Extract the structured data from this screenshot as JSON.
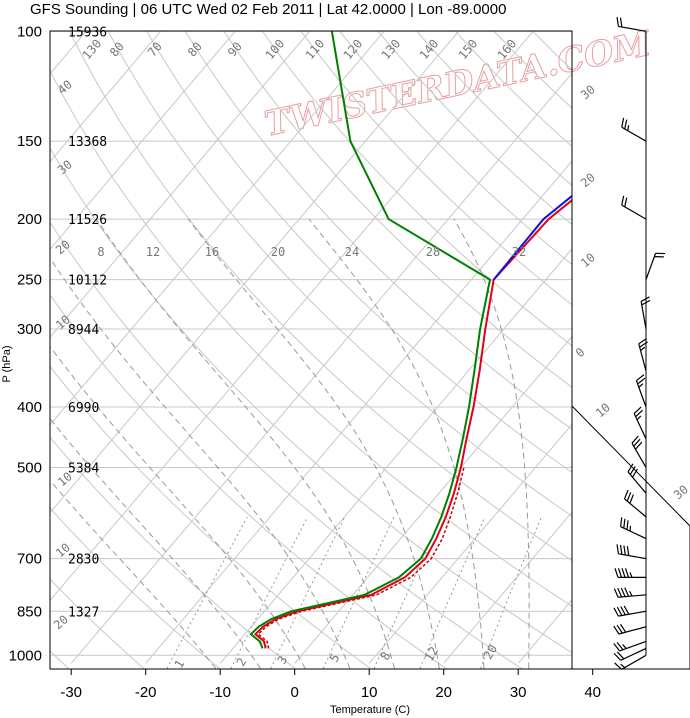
{
  "title": "GFS Sounding | 06 UTC Wed 02 Feb 2011 | Lat 42.0000 | Lon -89.0000",
  "watermark": "TWISTERDATA.COM",
  "colors": {
    "temperature": "#e0001b",
    "dewpoint": "#008000",
    "parcel": "#1010e0",
    "virtual_temp": "#cc0000",
    "grid": "#c8c8c8",
    "mixing": "#999999"
  },
  "chart_data": {
    "type": "skew-t",
    "xlabel": "Temperature (C)",
    "ylabel": "P (hPa)",
    "xlim": [
      -34,
      46
    ],
    "ylim": [
      1030,
      100
    ],
    "x_ticks": [
      "-30",
      "-20",
      "-10",
      "0",
      "10",
      "20",
      "30",
      "40"
    ],
    "pressure_levels": [
      {
        "p": 100,
        "label": "100",
        "height": "15936"
      },
      {
        "p": 150,
        "label": "150",
        "height": "13368"
      },
      {
        "p": 200,
        "label": "200",
        "height": "11526"
      },
      {
        "p": 250,
        "label": "250",
        "height": "10112"
      },
      {
        "p": 300,
        "label": "300",
        "height": "8944"
      },
      {
        "p": 400,
        "label": "400",
        "height": "6990"
      },
      {
        "p": 500,
        "label": "500",
        "height": "5384"
      },
      {
        "p": 700,
        "label": "700",
        "height": "2830"
      },
      {
        "p": 850,
        "label": "850",
        "height": "1327"
      },
      {
        "p": 1000,
        "label": "1000",
        "height": ""
      }
    ],
    "mixing_ratio_labels": [
      "8",
      "12",
      "16",
      "20",
      "24",
      "28",
      "32"
    ],
    "mixing_ratio_lower_labels": [
      "1",
      "2",
      "3",
      "5",
      "8",
      "12",
      "20"
    ],
    "dry_adiabat_labels_top": [
      "130",
      "80",
      "70",
      "80",
      "90",
      "100",
      "110",
      "120",
      "130",
      "140",
      "150",
      "160"
    ],
    "dry_adiabat_labels_right": [
      "30",
      "20",
      "10",
      "0",
      "10",
      "30"
    ],
    "dry_adiabat_labels_left": [
      "40",
      "30",
      "20",
      "10",
      "10",
      "10",
      "20",
      "30"
    ],
    "series": [
      {
        "name": "",
        "color_key": "temperature",
        "points": [
          [
            975,
            -5.6
          ],
          [
            950,
            -6.6
          ],
          [
            925,
            -8.6
          ],
          [
            900,
            -8.4
          ],
          [
            875,
            -7.6
          ],
          [
            850,
            -5.6
          ],
          [
            800,
            2.5
          ],
          [
            750,
            5.0
          ],
          [
            700,
            5.6
          ],
          [
            650,
            4.8
          ],
          [
            600,
            3.6
          ],
          [
            550,
            2.0
          ],
          [
            500,
            0.0
          ],
          [
            450,
            -2.5
          ],
          [
            400,
            -5.2
          ],
          [
            350,
            -8.5
          ],
          [
            300,
            -12.5
          ],
          [
            250,
            -17.0
          ],
          [
            200,
            -16.5
          ],
          [
            150,
            -12.5
          ],
          [
            100,
            -10.0
          ]
        ]
      },
      {
        "name": "",
        "color_key": "dewpoint",
        "points": [
          [
            975,
            -6.0
          ],
          [
            950,
            -7.2
          ],
          [
            925,
            -9.2
          ],
          [
            900,
            -9.0
          ],
          [
            875,
            -8.2
          ],
          [
            850,
            -6.4
          ],
          [
            800,
            1.6
          ],
          [
            750,
            4.2
          ],
          [
            700,
            5.0
          ],
          [
            650,
            4.2
          ],
          [
            600,
            3.0
          ],
          [
            550,
            1.4
          ],
          [
            500,
            -0.6
          ],
          [
            450,
            -3.0
          ],
          [
            400,
            -5.8
          ],
          [
            350,
            -9.2
          ],
          [
            300,
            -13.2
          ],
          [
            250,
            -17.5
          ],
          [
            200,
            -38.0
          ],
          [
            150,
            -52.0
          ],
          [
            100,
            -67.0
          ]
        ]
      },
      {
        "name": "",
        "color_key": "parcel",
        "points": [
          [
            250,
            -17.0
          ],
          [
            200,
            -17.2
          ],
          [
            150,
            -13.2
          ],
          [
            100,
            -10.6
          ]
        ]
      },
      {
        "name": "",
        "color_key": "virtual_temp",
        "dashed": true,
        "points": [
          [
            975,
            -5.2
          ],
          [
            950,
            -6.2
          ],
          [
            925,
            -8.2
          ],
          [
            900,
            -8.0
          ],
          [
            875,
            -7.2
          ],
          [
            850,
            -5.0
          ],
          [
            800,
            3.2
          ],
          [
            750,
            5.8
          ],
          [
            700,
            6.4
          ],
          [
            650,
            5.6
          ],
          [
            600,
            4.2
          ],
          [
            550,
            2.5
          ],
          [
            500,
            0.4
          ]
        ]
      }
    ],
    "wind_barbs": [
      {
        "p": 1000,
        "dir": 240,
        "speed": 15
      },
      {
        "p": 975,
        "dir": 245,
        "speed": 20
      },
      {
        "p": 950,
        "dir": 250,
        "speed": 25
      },
      {
        "p": 900,
        "dir": 255,
        "speed": 30
      },
      {
        "p": 850,
        "dir": 260,
        "speed": 40
      },
      {
        "p": 800,
        "dir": 265,
        "speed": 45
      },
      {
        "p": 750,
        "dir": 270,
        "speed": 45
      },
      {
        "p": 700,
        "dir": 280,
        "speed": 40
      },
      {
        "p": 650,
        "dir": 295,
        "speed": 35
      },
      {
        "p": 600,
        "dir": 310,
        "speed": 30
      },
      {
        "p": 550,
        "dir": 320,
        "speed": 30
      },
      {
        "p": 500,
        "dir": 330,
        "speed": 30
      },
      {
        "p": 450,
        "dir": 335,
        "speed": 25
      },
      {
        "p": 400,
        "dir": 340,
        "speed": 25
      },
      {
        "p": 350,
        "dir": 345,
        "speed": 25
      },
      {
        "p": 300,
        "dir": 350,
        "speed": 20
      },
      {
        "p": 250,
        "dir": 20,
        "speed": 20
      },
      {
        "p": 200,
        "dir": 300,
        "speed": 20
      },
      {
        "p": 150,
        "dir": 300,
        "speed": 25
      },
      {
        "p": 100,
        "dir": 280,
        "speed": 20
      }
    ]
  }
}
